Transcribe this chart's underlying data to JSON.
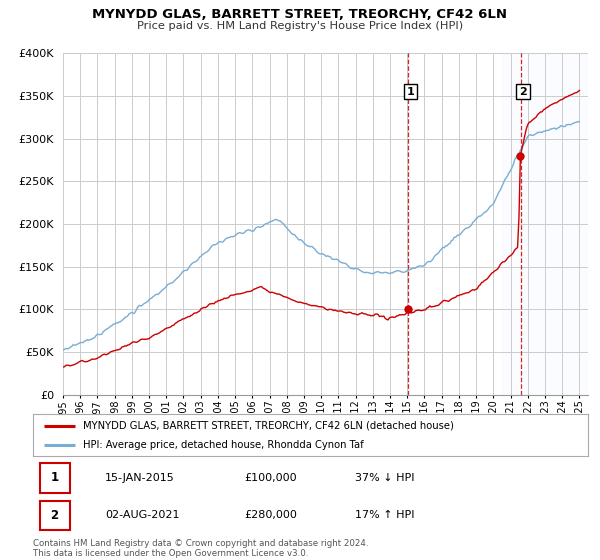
{
  "title": "MYNYDD GLAS, BARRETT STREET, TREORCHY, CF42 6LN",
  "subtitle": "Price paid vs. HM Land Registry's House Price Index (HPI)",
  "legend_line1": "MYNYDD GLAS, BARRETT STREET, TREORCHY, CF42 6LN (detached house)",
  "legend_line2": "HPI: Average price, detached house, Rhondda Cynon Taf",
  "annotation1_label": "1",
  "annotation1_date": "15-JAN-2015",
  "annotation1_price": "£100,000",
  "annotation1_change": "37% ↓ HPI",
  "annotation2_label": "2",
  "annotation2_date": "02-AUG-2021",
  "annotation2_price": "£280,000",
  "annotation2_change": "17% ↑ HPI",
  "footnote": "Contains HM Land Registry data © Crown copyright and database right 2024.\nThis data is licensed under the Open Government Licence v3.0.",
  "ylim": [
    0,
    400000
  ],
  "yticks": [
    0,
    50000,
    100000,
    150000,
    200000,
    250000,
    300000,
    350000,
    400000
  ],
  "hpi_color": "#7aadd4",
  "price_color": "#cc0000",
  "sale1_year": 2015.04,
  "sale1_value": 100000,
  "sale2_year": 2021.58,
  "sale2_value": 280000,
  "background_color": "#ffffff",
  "grid_color": "#cccccc",
  "shade_color": "#ddeeff"
}
